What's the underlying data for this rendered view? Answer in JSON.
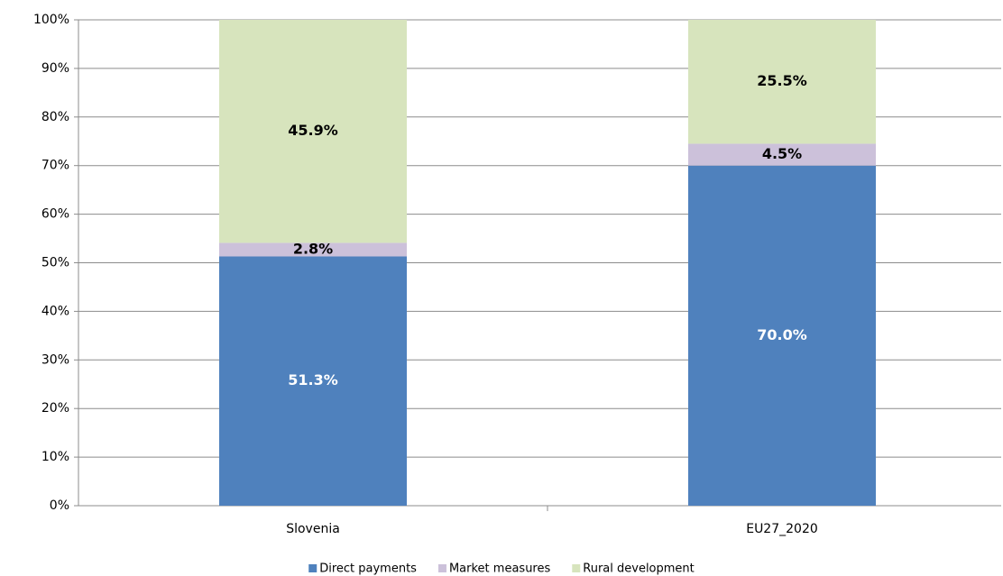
{
  "chart_data": {
    "type": "stacked_bar",
    "categories": [
      "Slovenia",
      "EU27_2020"
    ],
    "series": [
      {
        "name": "Direct payments",
        "color": "#4f81bd",
        "label_color": "#ffffff",
        "values": [
          51.3,
          70.0
        ],
        "value_labels": [
          "51.3%",
          "70.0%"
        ]
      },
      {
        "name": "Market measures",
        "color": "#ccc1da",
        "label_color": "#000000",
        "values": [
          2.8,
          4.5
        ],
        "value_labels": [
          "2.8%",
          "4.5%"
        ]
      },
      {
        "name": "Rural development",
        "color": "#d7e4bd",
        "label_color": "#000000",
        "values": [
          45.9,
          25.5
        ],
        "value_labels": [
          "45.9%",
          "25.5%"
        ]
      }
    ],
    "ylim": [
      0,
      100
    ],
    "yticks": [
      {
        "value": 0,
        "label": "0%"
      },
      {
        "value": 10,
        "label": "10%"
      },
      {
        "value": 20,
        "label": "20%"
      },
      {
        "value": 30,
        "label": "30%"
      },
      {
        "value": 40,
        "label": "40%"
      },
      {
        "value": 50,
        "label": "50%"
      },
      {
        "value": 60,
        "label": "60%"
      },
      {
        "value": 70,
        "label": "70%"
      },
      {
        "value": 80,
        "label": "80%"
      },
      {
        "value": 90,
        "label": "90%"
      },
      {
        "value": 100,
        "label": "100%"
      }
    ],
    "grid": true,
    "legend": "bottom"
  }
}
